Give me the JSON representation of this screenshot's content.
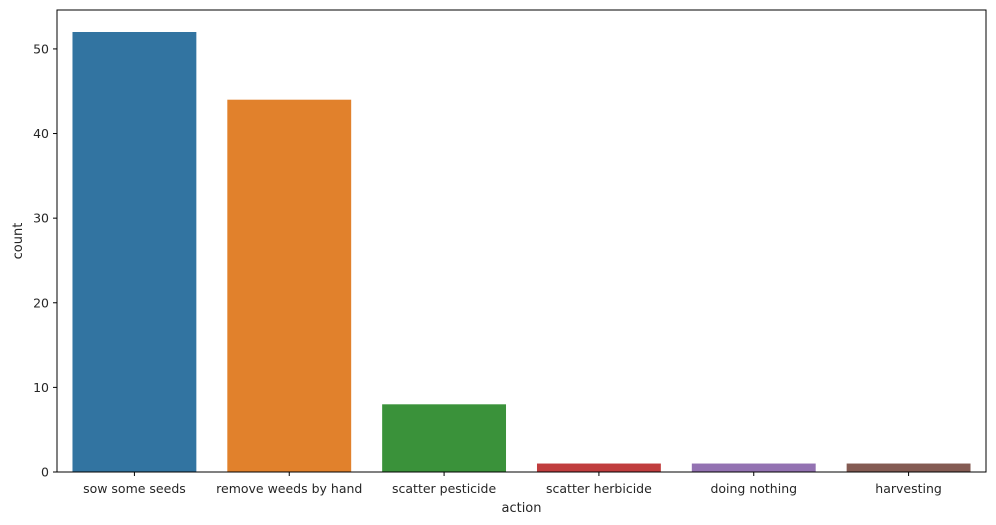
{
  "chart_data": {
    "type": "bar",
    "title": "",
    "xlabel": "action",
    "ylabel": "count",
    "ylim": [
      0,
      54.6
    ],
    "yticks": [
      0,
      10,
      20,
      30,
      40,
      50
    ],
    "categories": [
      "sow some seeds",
      "remove weeds by hand",
      "scatter pesticide",
      "scatter herbicide",
      "doing nothing",
      "harvesting"
    ],
    "values": [
      52,
      44,
      8,
      1,
      1,
      1
    ],
    "colors": [
      "#3274a1",
      "#e1812c",
      "#3a923a",
      "#c03d3e",
      "#9372b2",
      "#845b53"
    ],
    "grid": false,
    "legend": "none"
  }
}
